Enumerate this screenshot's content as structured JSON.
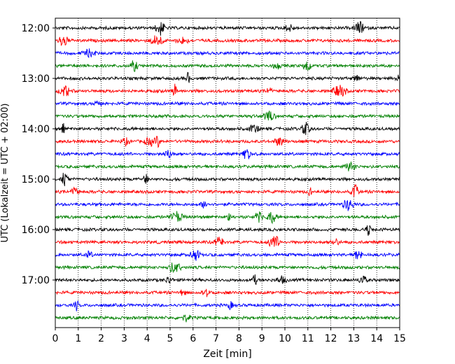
{
  "chart_data": {
    "type": "line",
    "xlabel": "Zeit  [min]",
    "ylabel": "UTC (Lokalzeit = UTC + 02:00)",
    "xlim": [
      0,
      15
    ],
    "x_ticks": [
      "0",
      "1",
      "2",
      "3",
      "4",
      "5",
      "6",
      "7",
      "8",
      "9",
      "10",
      "11",
      "12",
      "13",
      "14",
      "15"
    ],
    "y_ticks": [
      "12:00",
      "13:00",
      "14:00",
      "15:00",
      "16:00",
      "17:00"
    ],
    "grid": "vertical dotted",
    "trace_colors": [
      "#000000",
      "#ff0000",
      "#0000ff",
      "#008000"
    ],
    "trace_count": 24,
    "trace_start": "12:00",
    "trace_interval_min": 15
  }
}
